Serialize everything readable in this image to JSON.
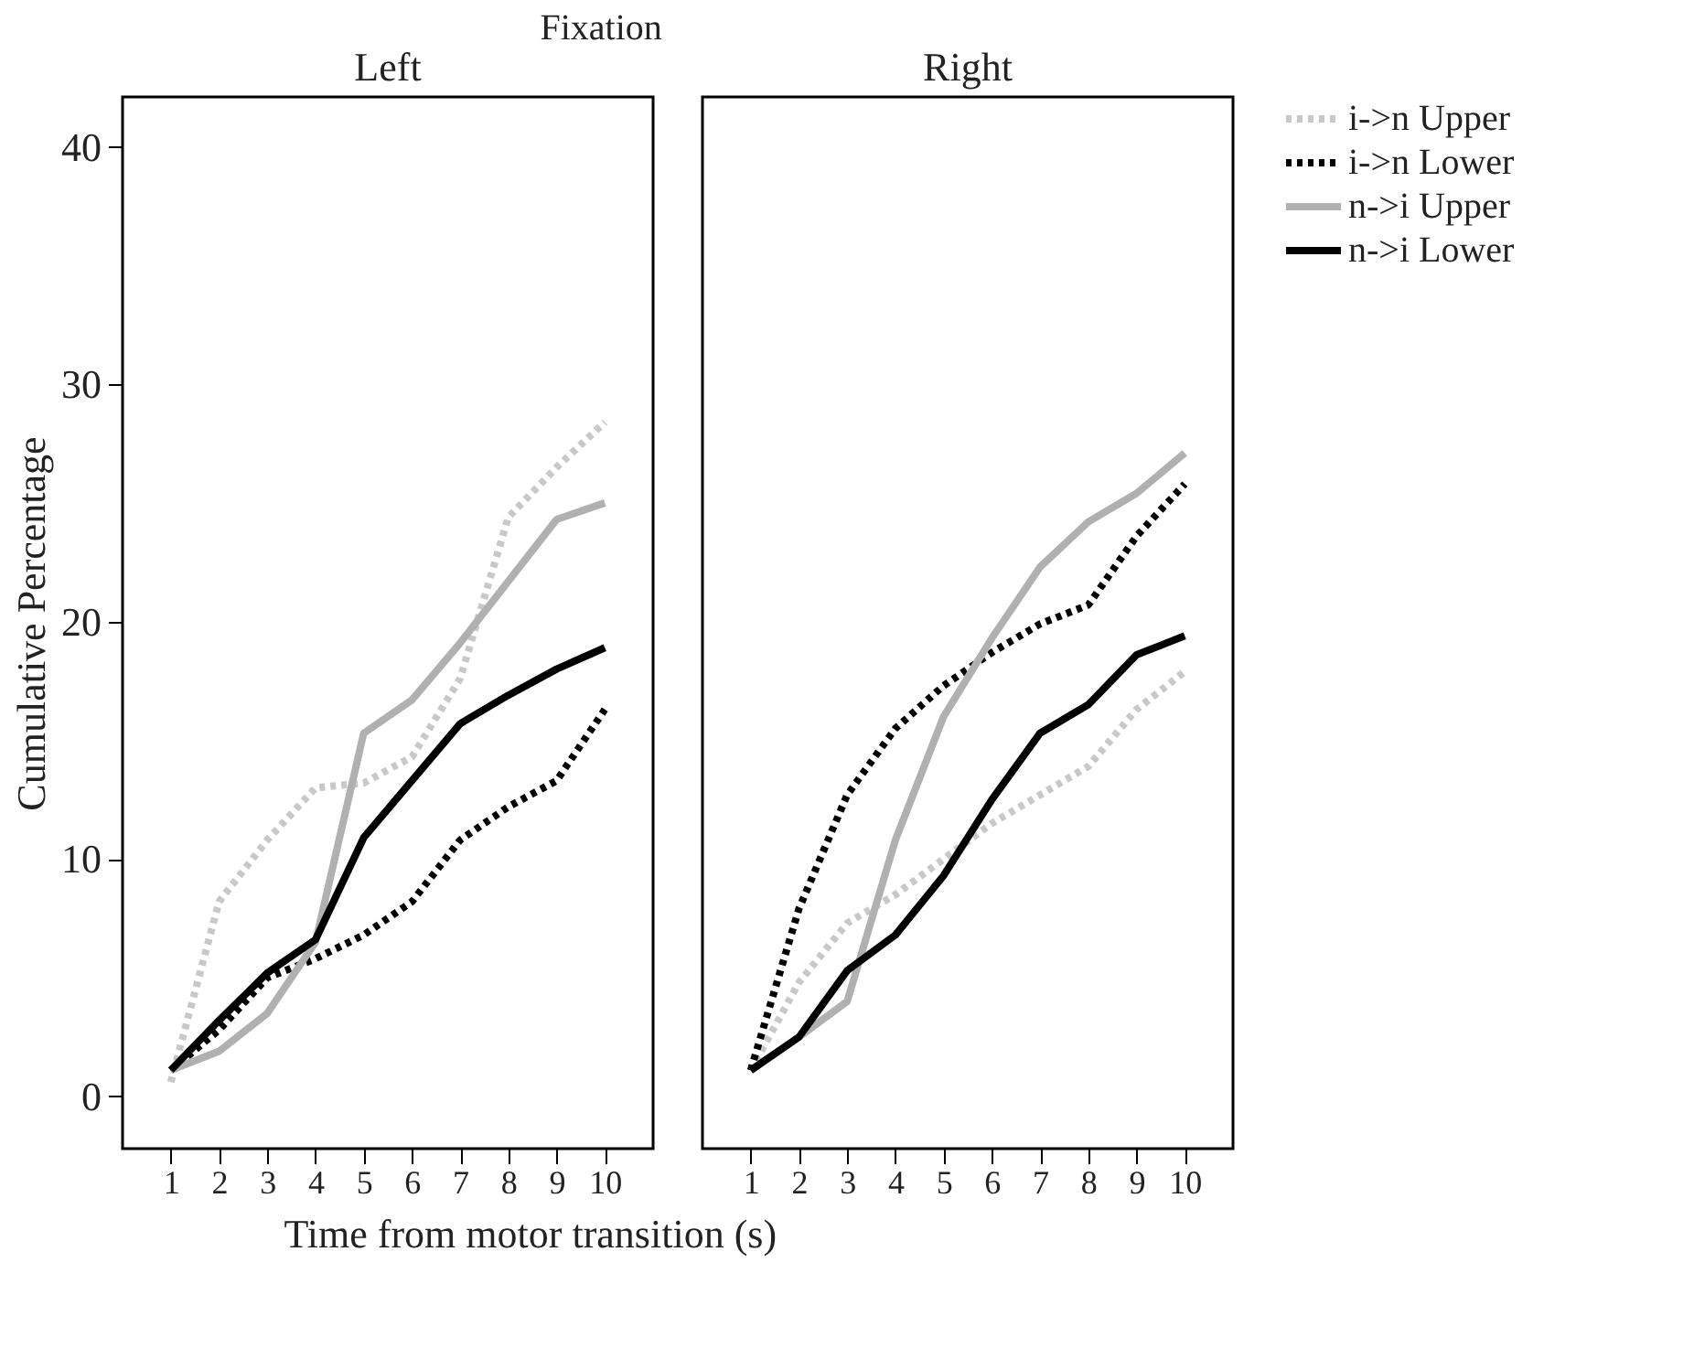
{
  "chart_data": [
    {
      "type": "line",
      "title": "Left",
      "ylabel": "Cumulative Percentage",
      "xlabel": "Time from motor transition (s)",
      "annotations": [
        "Fixation"
      ],
      "x": [
        1,
        2,
        3,
        4,
        5,
        6,
        7,
        8,
        9,
        10
      ],
      "xlim": [
        0,
        11
      ],
      "xticks": [
        1,
        2,
        3,
        4,
        5,
        6,
        7,
        8,
        9,
        10
      ],
      "ylim": [
        -2.2,
        42.1
      ],
      "yticks": [
        0,
        10,
        20,
        30,
        40
      ],
      "grid": false,
      "legend": "top right",
      "series": [
        {
          "name": "i->n Upper",
          "color": "#c8c8c8",
          "line_style": "dotted",
          "values": [
            0.6,
            8.2,
            10.8,
            13.0,
            13.2,
            14.3,
            17.6,
            24.4,
            26.5,
            28.4
          ]
        },
        {
          "name": "i->n Lower",
          "color": "#000000",
          "line_style": "dotted",
          "values": [
            1.1,
            2.8,
            5.0,
            5.8,
            6.8,
            8.2,
            10.8,
            12.2,
            13.3,
            16.3
          ]
        },
        {
          "name": "n->i Upper",
          "color": "#b0b0b0",
          "line_style": "solid",
          "values": [
            1.1,
            1.9,
            3.5,
            6.5,
            15.3,
            16.7,
            19.1,
            21.7,
            24.3,
            25.0
          ]
        },
        {
          "name": "n->i Lower",
          "color": "#000000",
          "line_style": "solid",
          "values": [
            1.1,
            3.2,
            5.2,
            6.6,
            10.9,
            13.3,
            15.7,
            16.9,
            18.0,
            18.9
          ]
        }
      ]
    },
    {
      "type": "line",
      "title": "Right",
      "x": [
        1,
        2,
        3,
        4,
        5,
        6,
        7,
        8,
        9,
        10
      ],
      "xlim": [
        0,
        11
      ],
      "xticks": [
        1,
        2,
        3,
        4,
        5,
        6,
        7,
        8,
        9,
        10
      ],
      "ylim": [
        -2.2,
        42.1
      ],
      "yticks": [
        0,
        10,
        20,
        30,
        40
      ],
      "tick_labels": "x",
      "grid": false,
      "legend": false,
      "series": [
        {
          "name": "i->n Upper",
          "color": "#c8c8c8",
          "line_style": "dotted",
          "values": [
            1.1,
            4.8,
            7.3,
            8.5,
            10.0,
            11.5,
            12.7,
            13.9,
            16.3,
            17.9
          ]
        },
        {
          "name": "i->n Lower",
          "color": "#000000",
          "line_style": "dotted",
          "values": [
            1.1,
            7.9,
            12.7,
            15.5,
            17.3,
            18.7,
            19.9,
            20.7,
            23.6,
            25.8
          ]
        },
        {
          "name": "n->i Upper",
          "color": "#b0b0b0",
          "line_style": "solid",
          "values": [
            1.1,
            2.5,
            4.0,
            10.8,
            16.0,
            19.3,
            22.3,
            24.2,
            25.4,
            27.1
          ]
        },
        {
          "name": "n->i Lower",
          "color": "#000000",
          "line_style": "solid",
          "values": [
            1.1,
            2.5,
            5.3,
            6.8,
            9.3,
            12.5,
            15.3,
            16.5,
            18.6,
            19.4
          ]
        }
      ]
    }
  ]
}
